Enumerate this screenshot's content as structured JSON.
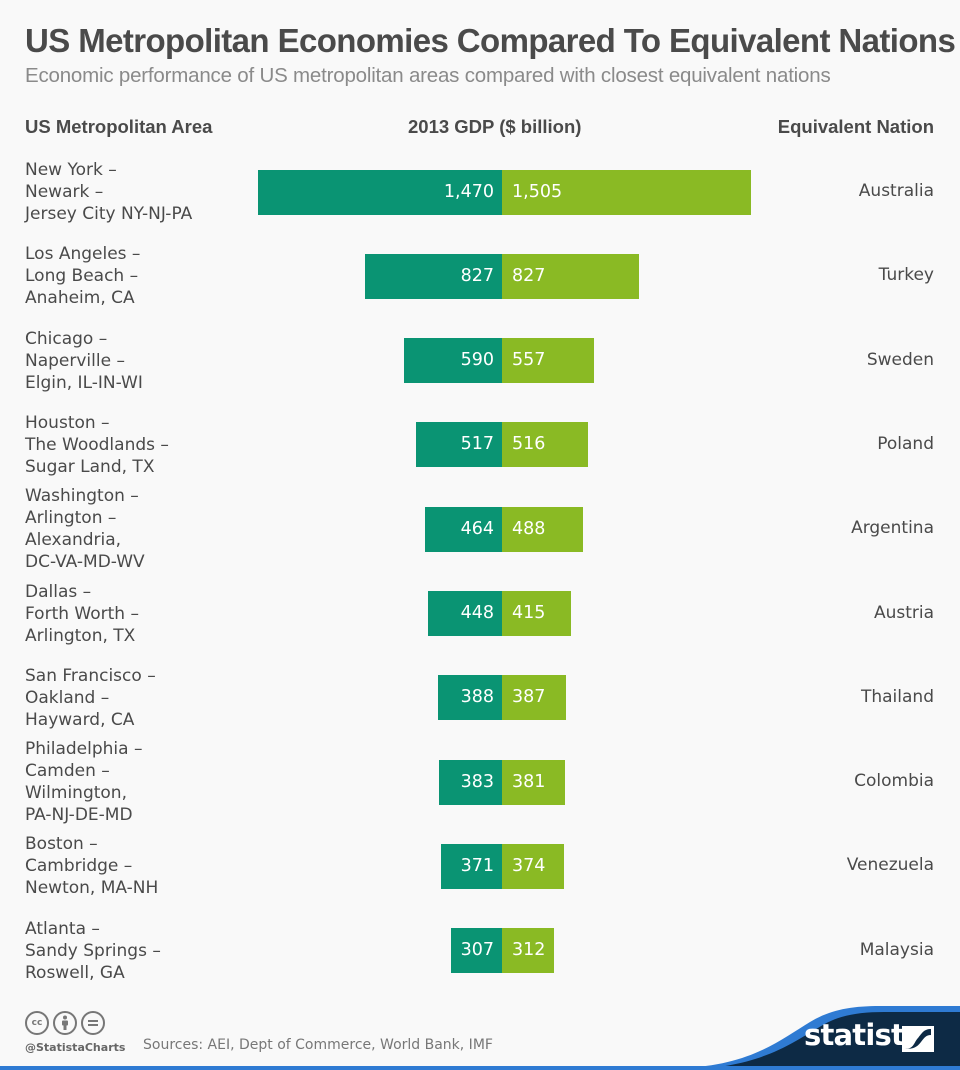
{
  "header": {
    "title": "US Metropolitan Economies Compared To Equivalent Nations",
    "subtitle": "Economic performance of US metropolitan areas compared with closest equivalent nations"
  },
  "columns": {
    "left": "US Metropolitan Area",
    "middle": "2013 GDP ($ billion)",
    "right": "Equivalent Nation"
  },
  "colors": {
    "us_metro": "#0a9473",
    "nation": "#8aba24",
    "brand_dark": "#0d2a45",
    "brand_accent": "#2f7bd3"
  },
  "chart_data": {
    "type": "bar",
    "orientation": "horizontal-diverging",
    "title": "US Metropolitan Economies Compared To Equivalent Nations",
    "subtitle": "Economic performance of US metropolitan areas compared with closest equivalent nations",
    "xlabel": "2013 GDP ($ billion)",
    "categories": [
      "New York –\nNewark –\nJersey City NY-NJ-PA",
      "Los Angeles –\nLong Beach –\nAnaheim, CA",
      "Chicago –\nNaperville –\nElgin, IL-IN-WI",
      "Houston –\nThe Woodlands –\nSugar Land, TX",
      "Washington –\nArlington –\nAlexandria,\nDC-VA-MD-WV",
      "Dallas –\nForth Worth –\nArlington, TX",
      "San Francisco –\nOakland –\nHayward, CA",
      "Philadelphia –\nCamden –\nWilmington,\nPA-NJ-DE-MD",
      "Boston –\nCambridge –\nNewton, MA-NH",
      "Atlanta –\nSandy Springs –\nRoswell, GA"
    ],
    "nations": [
      "Australia",
      "Turkey",
      "Sweden",
      "Poland",
      "Argentina",
      "Austria",
      "Thailand",
      "Colombia",
      "Venezuela",
      "Malaysia"
    ],
    "series": [
      {
        "name": "US Metropolitan Area",
        "values": [
          1470,
          827,
          590,
          517,
          464,
          448,
          388,
          383,
          371,
          307
        ],
        "labels": [
          "1,470",
          "827",
          "590",
          "517",
          "464",
          "448",
          "388",
          "383",
          "371",
          "307"
        ]
      },
      {
        "name": "Equivalent Nation",
        "values": [
          1505,
          827,
          557,
          516,
          488,
          415,
          387,
          381,
          374,
          312
        ],
        "labels": [
          "1,505",
          "827",
          "557",
          "516",
          "488",
          "415",
          "387",
          "381",
          "374",
          "312"
        ]
      }
    ],
    "xlim": [
      0,
      1505
    ],
    "grid": false,
    "legend": "none"
  },
  "footer": {
    "license_icons": [
      "cc-icon",
      "by-attribution-icon",
      "no-derivatives-icon"
    ],
    "cc_text": "cc",
    "handle": "@StatistaCharts",
    "sources": "Sources: AEI, Dept of Commerce, World Bank, IMF",
    "brand": "statista"
  }
}
